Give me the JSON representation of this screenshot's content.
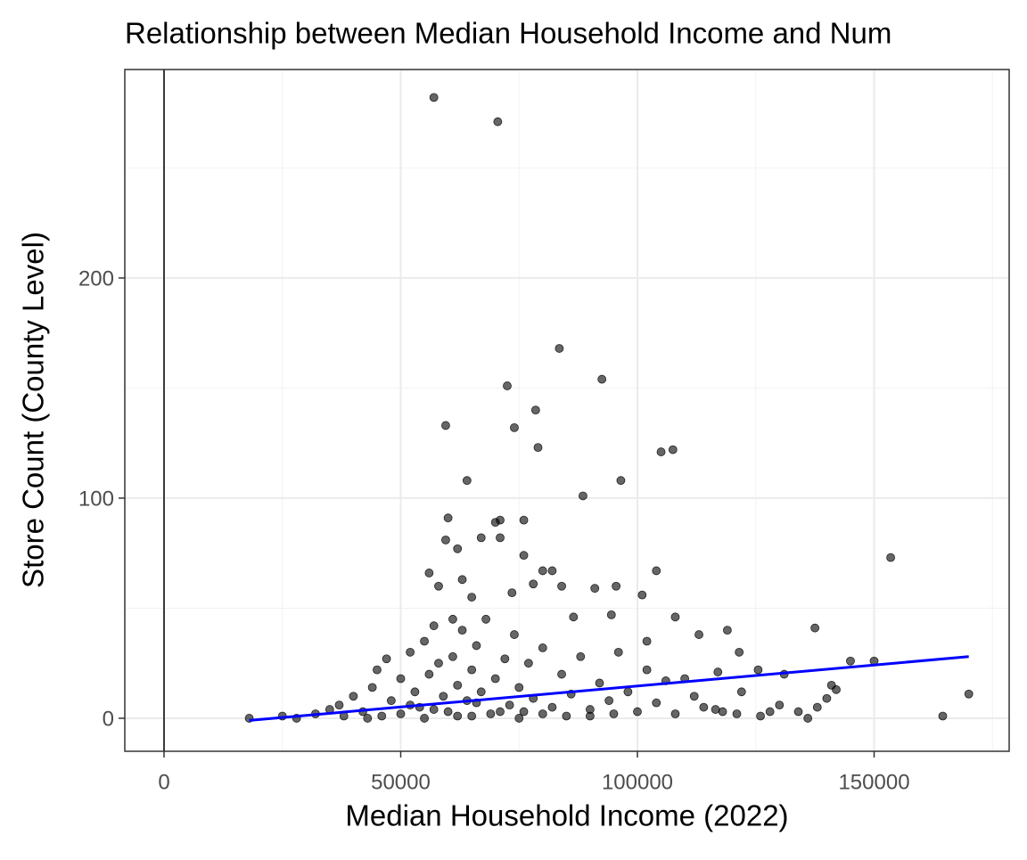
{
  "chart_data": {
    "type": "scatter",
    "title": "Relationship between Median Household Income and Num",
    "x_label": "Median Household Income (2022)",
    "y_label": "Store Count (County Level)",
    "x": [
      57000,
      70500,
      83500,
      92500,
      72500,
      59500,
      74000,
      78500,
      79000,
      105000,
      107500,
      64000,
      96500,
      88500,
      60000,
      71000,
      76000,
      70000,
      153500,
      59500,
      62000,
      67000,
      71000,
      76000,
      80000,
      82000,
      104000,
      56000,
      63000,
      84000,
      58000,
      95500,
      91000,
      101000,
      78000,
      73500,
      65000,
      57000,
      61000,
      86500,
      108000,
      94500,
      119000,
      137500,
      113000,
      121500,
      102000,
      145000,
      150000,
      141000,
      142000,
      164500,
      170000,
      134000,
      136000,
      131000,
      125500,
      128000,
      121000,
      116500,
      110000,
      117000,
      18000,
      25000,
      28000,
      32000,
      35000,
      37000,
      40000,
      42000,
      44000,
      45000,
      47000,
      48000,
      50000,
      52000,
      53000,
      54000,
      55000,
      56000,
      58000,
      59000,
      60000,
      61000,
      62000,
      63000,
      64000,
      65000,
      66000,
      67000,
      68000,
      69000,
      70000,
      72000,
      73000,
      74000,
      75000,
      76000,
      77000,
      78000,
      80000,
      82000,
      84000,
      86000,
      88000,
      90000,
      92000,
      94000,
      96000,
      98000,
      100000,
      102000,
      104000,
      106000,
      108000,
      112000,
      114000,
      118000,
      122000,
      126000,
      130000,
      138000,
      140000,
      46000,
      50000,
      55000,
      65000,
      75000,
      85000,
      95000,
      38000,
      43000,
      52000,
      57000,
      62000,
      66000,
      71000,
      80000,
      90000
    ],
    "y": [
      282,
      271,
      168,
      154,
      151,
      133,
      132,
      140,
      123,
      121,
      122,
      108,
      108,
      101,
      91,
      90,
      90,
      89,
      73,
      81,
      77,
      82,
      82,
      74,
      67,
      67,
      67,
      66,
      63,
      60,
      60,
      60,
      59,
      56,
      61,
      57,
      55,
      42,
      45,
      46,
      46,
      47,
      40,
      41,
      38,
      30,
      35,
      26,
      26,
      15,
      13,
      1,
      11,
      3,
      0,
      20,
      22,
      3,
      2,
      4,
      18,
      21,
      0,
      1,
      0,
      2,
      4,
      6,
      10,
      3,
      14,
      22,
      27,
      8,
      18,
      30,
      12,
      5,
      35,
      20,
      25,
      10,
      3,
      28,
      15,
      40,
      8,
      22,
      33,
      12,
      45,
      2,
      18,
      27,
      6,
      38,
      14,
      3,
      25,
      9,
      32,
      5,
      20,
      11,
      28,
      4,
      16,
      8,
      30,
      12,
      3,
      22,
      7,
      17,
      2,
      10,
      5,
      3,
      12,
      1,
      6,
      5,
      9,
      1,
      2,
      0,
      1,
      0,
      1,
      2,
      1,
      0,
      6,
      4,
      1,
      7,
      3,
      2,
      1
    ],
    "color": "#000000",
    "xlim": [
      -8286,
      178531
    ],
    "ylim": [
      -15,
      294.7
    ],
    "xticks": [
      0,
      50000,
      100000,
      150000
    ],
    "yticks": [
      0,
      100,
      200
    ],
    "minor_xticks": [
      25000,
      75000,
      125000,
      175000
    ],
    "minor_yticks": [
      50,
      150,
      250
    ],
    "grid": true,
    "vline": 0,
    "trend": {
      "x": [
        18000,
        170000
      ],
      "y": [
        -1,
        28
      ],
      "color": "#0000ff"
    }
  }
}
